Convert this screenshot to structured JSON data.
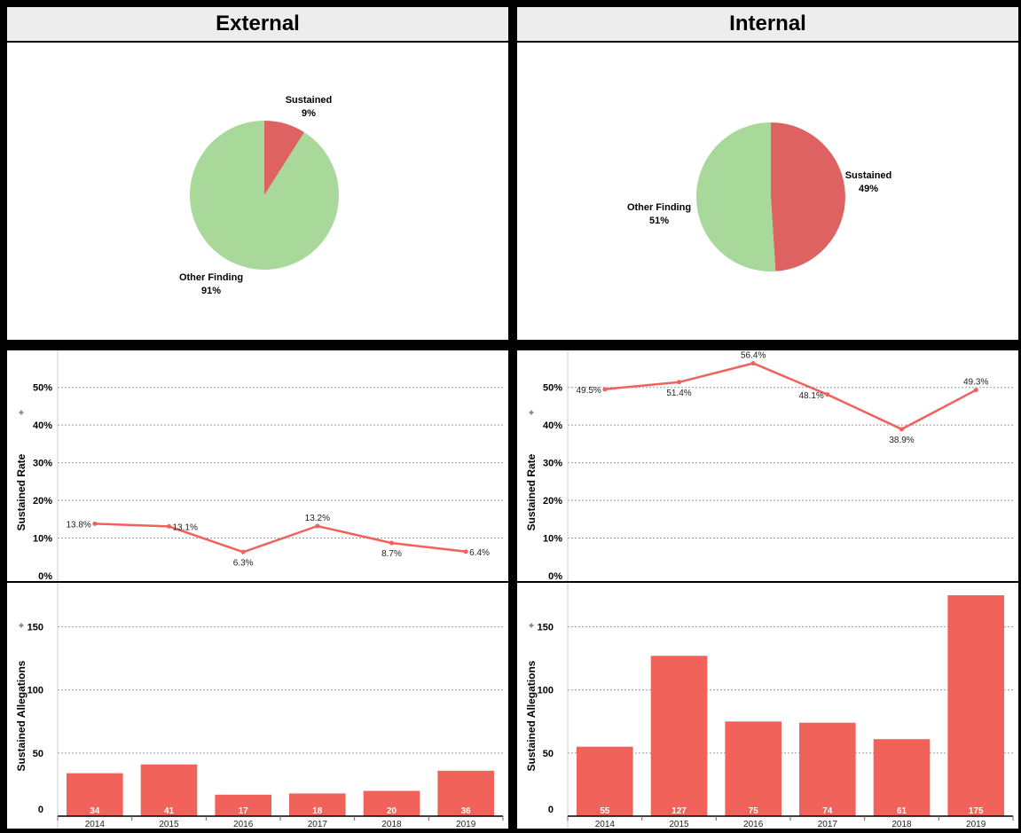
{
  "panels": [
    {
      "title": "External",
      "pie": {
        "type": "pie",
        "slices": [
          {
            "label": "Sustained",
            "pct": "9%",
            "value": 9,
            "color": "#df6263"
          },
          {
            "label": "Other Finding",
            "pct": "91%",
            "value": 91,
            "color": "#a8d99a"
          }
        ]
      },
      "rate": {
        "type": "line",
        "ylabel": "Sustained Rate",
        "ylim": [
          0,
          0.57
        ],
        "yticks": [
          "0%",
          "10%",
          "20%",
          "30%",
          "40%",
          "50%"
        ],
        "color": "#f0625a",
        "values": [
          13.8,
          13.1,
          6.3,
          13.2,
          8.7,
          6.4
        ],
        "labels": [
          "13.8%",
          "13.1%",
          "6.3%",
          "13.2%",
          "8.7%",
          "6.4%"
        ]
      },
      "alleg": {
        "type": "bar",
        "ylabel": "Sustained Allegations",
        "ylim": [
          0,
          175
        ],
        "yticks": [
          "0",
          "50",
          "100",
          "150"
        ],
        "color": "#f0625a",
        "categories": [
          "2014",
          "2015",
          "2016",
          "2017",
          "2018",
          "2019"
        ],
        "values": [
          34,
          41,
          17,
          18,
          20,
          36
        ],
        "labels": [
          "34",
          "41",
          "17",
          "18",
          "20",
          "36"
        ]
      }
    },
    {
      "title": "Internal",
      "pie": {
        "type": "pie",
        "slices": [
          {
            "label": "Sustained",
            "pct": "49%",
            "value": 49,
            "color": "#df6263"
          },
          {
            "label": "Other Finding",
            "pct": "51%",
            "value": 51,
            "color": "#a8d99a"
          }
        ]
      },
      "rate": {
        "type": "line",
        "ylabel": "Sustained Rate",
        "ylim": [
          0,
          0.57
        ],
        "yticks": [
          "0%",
          "10%",
          "20%",
          "30%",
          "40%",
          "50%"
        ],
        "color": "#f0625a",
        "values": [
          49.5,
          51.4,
          56.4,
          48.1,
          38.9,
          49.3
        ],
        "labels": [
          "49.5%",
          "51.4%",
          "56.4%",
          "48.1%",
          "38.9%",
          "49.3%"
        ]
      },
      "alleg": {
        "type": "bar",
        "ylabel": "Sustained Allegations",
        "ylim": [
          0,
          175
        ],
        "yticks": [
          "0",
          "50",
          "100",
          "150"
        ],
        "color": "#f0625a",
        "categories": [
          "2014",
          "2015",
          "2016",
          "2017",
          "2018",
          "2019"
        ],
        "values": [
          55,
          127,
          75,
          74,
          61,
          175
        ],
        "labels": [
          "55",
          "127",
          "75",
          "74",
          "61",
          "175"
        ]
      }
    }
  ]
}
